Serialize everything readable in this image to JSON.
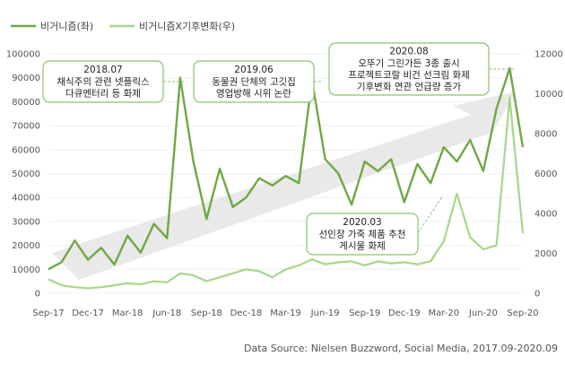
{
  "legend": {
    "left_series": "비거니즘(좌)",
    "right_series": "비거니즘X기후변화(우)"
  },
  "source": "Data Source: Nielsen  Buzzword, Social Media, 2017.09-2020.09",
  "colors": {
    "left": "#6ea943",
    "right": "#a8d68a",
    "arrow": "#e9e9e9",
    "grid": "#f0f0f0",
    "callout_border": "#8ec16e"
  },
  "chart_data": {
    "type": "line",
    "x_tick_labels": [
      "Sep-17",
      "Dec-17",
      "Mar-18",
      "Jun-18",
      "Sep-18",
      "Dec-18",
      "Mar-19",
      "Jun-19",
      "Sep-19",
      "Dec-19",
      "Mar-20",
      "Jun-20",
      "Sep-20"
    ],
    "y_left": {
      "ylim": [
        0,
        100000
      ],
      "ticks": [
        0,
        10000,
        20000,
        30000,
        40000,
        50000,
        60000,
        70000,
        80000,
        90000,
        100000
      ]
    },
    "y_right": {
      "ylim": [
        0,
        12000
      ],
      "ticks": [
        0,
        2000,
        4000,
        6000,
        8000,
        10000,
        12000
      ]
    },
    "series": [
      {
        "name": "비거니즘(좌)",
        "axis": "left",
        "values": [
          10000,
          13000,
          22000,
          14000,
          19000,
          12000,
          24000,
          17000,
          29000,
          23000,
          90000,
          55000,
          31000,
          52000,
          36000,
          40000,
          48000,
          45000,
          49000,
          46000,
          89000,
          56000,
          50000,
          37000,
          55000,
          51000,
          56000,
          38000,
          54000,
          46000,
          61000,
          55000,
          64000,
          51000,
          77000,
          94000,
          61000
        ]
      },
      {
        "name": "비거니즘X기후변화(우)",
        "axis": "right",
        "values": [
          700,
          400,
          300,
          250,
          300,
          400,
          500,
          450,
          600,
          550,
          1000,
          900,
          600,
          800,
          1000,
          1200,
          1100,
          800,
          1200,
          1400,
          1700,
          1450,
          1550,
          1600,
          1400,
          1600,
          1500,
          1550,
          1450,
          1600,
          2600,
          5000,
          2800,
          2200,
          2400,
          9800,
          3000
        ]
      }
    ],
    "annotations": [
      {
        "lines": [
          "2018.07",
          "채식주의 관련 넷플릭스",
          "다큐멘터리 등 화제"
        ]
      },
      {
        "lines": [
          "2019.06",
          "동물권 단체의 고깃집",
          "영업방해 시위 논란"
        ]
      },
      {
        "lines": [
          "2020.08",
          "오뚜기 그린가든 3종 출시",
          "프로젝트코랄 비건 선크림 화제",
          "기후변화 연관 언급량 증가"
        ]
      },
      {
        "lines": [
          "2020.03",
          "선인장 가죽 제품 추천",
          "게시물 화제"
        ]
      }
    ]
  }
}
